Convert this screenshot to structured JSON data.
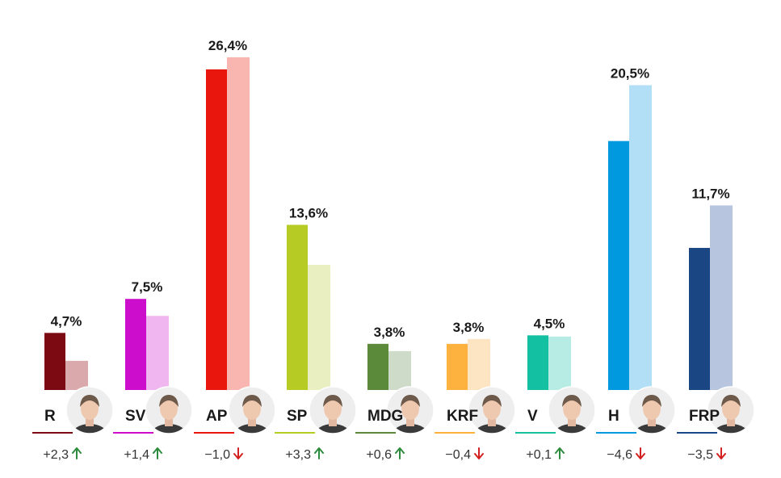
{
  "chart_data": {
    "type": "bar",
    "categories": [
      "R",
      "SV",
      "AP",
      "SP",
      "MDG",
      "KRF",
      "V",
      "H",
      "FRP"
    ],
    "series": [
      {
        "values": [
          4.7,
          7.5,
          26.4,
          13.6,
          3.8,
          3.8,
          4.5,
          20.5,
          11.7
        ]
      },
      {
        "values": [
          2.4,
          6.1,
          27.4,
          10.3,
          3.2,
          4.2,
          4.4,
          25.1,
          15.2
        ]
      }
    ],
    "value_labels": [
      "4,7%",
      "7,5%",
      "26,4%",
      "13,6%",
      "3,8%",
      "3,8%",
      "4,5%",
      "20,5%",
      "11,7%"
    ],
    "changes": [
      {
        "text": "+2,3",
        "direction": "up"
      },
      {
        "text": "+1,4",
        "direction": "up"
      },
      {
        "text": "−1,0",
        "direction": "down"
      },
      {
        "text": "+3,3",
        "direction": "up"
      },
      {
        "text": "+0,6",
        "direction": "up"
      },
      {
        "text": "−0,4",
        "direction": "down"
      },
      {
        "text": "+0,1",
        "direction": "up"
      },
      {
        "text": "−4,6",
        "direction": "down"
      },
      {
        "text": "−3,5",
        "direction": "down"
      }
    ],
    "colors": {
      "current": [
        "#7b0a12",
        "#cc0ecc",
        "#e8160c",
        "#b6cc24",
        "#5b8a3a",
        "#fdb13f",
        "#13c1a2",
        "#0098de",
        "#1a4784"
      ],
      "previous": [
        "#d9a9ab",
        "#f0b6ef",
        "#f9b6b0",
        "#e9efc0",
        "#cedbc9",
        "#fde4c3",
        "#b6ece3",
        "#b2dff6",
        "#b7c6de"
      ]
    },
    "arrow_colors": {
      "up": "#2e8b3d",
      "down": "#d42020"
    },
    "grid": false,
    "legend": "none"
  }
}
